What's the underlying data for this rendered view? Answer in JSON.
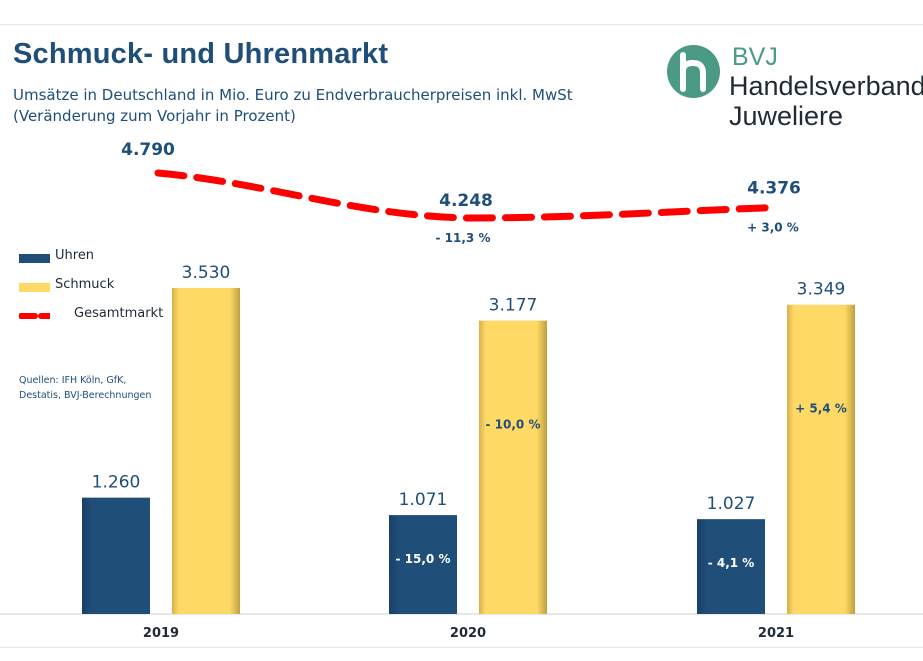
{
  "title": "Schmuck- und Uhrenmarkt",
  "subtitle": {
    "line1": "Umsätze in Deutschland in Mio. Euro zu Endverbraucherpreisen inkl. MwSt",
    "line2": "(Veränderung zum Vorjahr in Prozent)"
  },
  "logo": {
    "mark": "h",
    "line1": "BVJ",
    "line2": "Handelsverband",
    "line3": "Juweliere"
  },
  "legend": {
    "uhren": "Uhren",
    "schmuck": "Schmuck",
    "gesamt": "Gesamtmarkt"
  },
  "sources": {
    "line1": "Quellen: IFH Köln, GfK,",
    "line2": "Destatis, BVJ-Berechnungen"
  },
  "colors": {
    "uhren": "#1f4e79",
    "schmuck": "#ffd966",
    "gesamt": "#ff0000",
    "text": "#1f4e79"
  },
  "chart_data": {
    "type": "bar",
    "categories": [
      "2019",
      "2020",
      "2021"
    ],
    "series": [
      {
        "name": "Uhren",
        "values": [
          1260,
          1071,
          1027
        ],
        "labels": [
          "1.260",
          "1.071",
          "1.027"
        ],
        "changes": [
          "",
          "- 15,0 %",
          "- 4,1 %"
        ]
      },
      {
        "name": "Schmuck",
        "values": [
          3530,
          3177,
          3349
        ],
        "labels": [
          "3.530",
          "3.177",
          "3.349"
        ],
        "changes": [
          "",
          "- 10,0 %",
          "+ 5,4 %"
        ]
      }
    ],
    "line": {
      "name": "Gesamtmarkt",
      "values": [
        4790,
        4248,
        4376
      ],
      "labels": [
        "4.790",
        "4.248",
        "4.376"
      ],
      "changes": [
        "",
        "- 11,3 %",
        "+ 3,0 %"
      ]
    },
    "ylim": [
      0,
      3800
    ]
  }
}
